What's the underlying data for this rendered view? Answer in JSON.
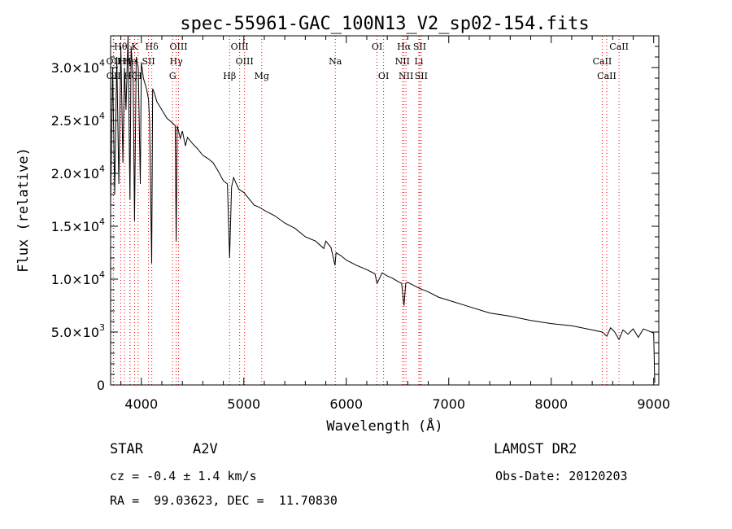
{
  "chart_data": {
    "type": "line",
    "title": "spec-55961-GAC_100N13_V2_sp02-154.fits",
    "xlabel": "Wavelength (Å)",
    "ylabel": "Flux (relative)",
    "xlim": [
      3700,
      9050
    ],
    "ylim": [
      0,
      33000
    ],
    "x_ticks": [
      4000,
      5000,
      6000,
      7000,
      8000,
      9000
    ],
    "y_ticks": [
      {
        "value": 0,
        "mantissa": "0",
        "exp": ""
      },
      {
        "value": 5000,
        "mantissa": "5.0×10",
        "exp": "3"
      },
      {
        "value": 10000,
        "mantissa": "1.0×10",
        "exp": "4"
      },
      {
        "value": 15000,
        "mantissa": "1.5×10",
        "exp": "4"
      },
      {
        "value": 20000,
        "mantissa": "2.0×10",
        "exp": "4"
      },
      {
        "value": 25000,
        "mantissa": "2.5×10",
        "exp": "4"
      },
      {
        "value": 30000,
        "mantissa": "3.0×10",
        "exp": "4"
      }
    ],
    "series": [
      {
        "x": [
          3700,
          3720,
          3740,
          3760,
          3780,
          3800,
          3820,
          3835,
          3850,
          3870,
          3889,
          3900,
          3920,
          3933,
          3950,
          3970,
          3990,
          4000,
          4020,
          4050,
          4070,
          4080,
          4101,
          4110,
          4130,
          4150,
          4200,
          4250,
          4300,
          4330,
          4340,
          4350,
          4380,
          4400,
          4430,
          4450,
          4500,
          4550,
          4600,
          4650,
          4700,
          4750,
          4800,
          4840,
          4861,
          4880,
          4900,
          4950,
          5000,
          5050,
          5100,
          5150,
          5200,
          5300,
          5400,
          5500,
          5600,
          5700,
          5780,
          5800,
          5850,
          5890,
          5900,
          5950,
          6000,
          6100,
          6200,
          6280,
          6300,
          6350,
          6400,
          6450,
          6500,
          6540,
          6563,
          6580,
          6600,
          6700,
          6800,
          6900,
          7000,
          7200,
          7400,
          7600,
          7800,
          8000,
          8200,
          8400,
          8498,
          8542,
          8580,
          8620,
          8662,
          8700,
          8750,
          8800,
          8850,
          8900,
          8950,
          9000,
          9010
        ],
        "y": [
          17000,
          30000,
          18000,
          31000,
          19000,
          32000,
          21000,
          30000,
          26000,
          33000,
          17500,
          32000,
          29000,
          15500,
          31000,
          30000,
          19000,
          30500,
          29000,
          28000,
          27000,
          25000,
          11500,
          28000,
          27500,
          26800,
          26000,
          25200,
          24800,
          24500,
          13600,
          24500,
          23300,
          24000,
          22600,
          23400,
          22800,
          22300,
          21700,
          21400,
          21000,
          20200,
          19300,
          19000,
          12000,
          18700,
          19600,
          18500,
          18200,
          17600,
          17000,
          16800,
          16500,
          16000,
          15300,
          14800,
          14000,
          13600,
          12900,
          13600,
          13000,
          11300,
          12500,
          12200,
          11800,
          11300,
          10900,
          10500,
          9600,
          10600,
          10300,
          10100,
          9800,
          9600,
          7500,
          9600,
          9700,
          9200,
          8800,
          8300,
          8000,
          7400,
          6800,
          6500,
          6100,
          5800,
          5600,
          5200,
          5000,
          4600,
          5400,
          5000,
          4300,
          5200,
          4800,
          5300,
          4500,
          5300,
          5100,
          4900,
          200
        ]
      }
    ],
    "lines": [
      {
        "label": "Hθ",
        "wave": 3798,
        "row": 0
      },
      {
        "label": "K",
        "wave": 3934,
        "row": 0
      },
      {
        "label": "Hδ",
        "wave": 4102,
        "row": 0
      },
      {
        "label": "OIII",
        "wave": 4363,
        "row": 0
      },
      {
        "label": "OIII",
        "wave": 4959,
        "row": 0
      },
      {
        "label": "OI",
        "wave": 6300,
        "row": 0
      },
      {
        "label": "Hα",
        "wave": 6563,
        "row": 0
      },
      {
        "label": "SII",
        "wave": 6716,
        "row": 0
      },
      {
        "label": "CaII",
        "wave": 8662,
        "row": 0
      },
      {
        "label": "OII",
        "wave": 3727,
        "row": 1
      },
      {
        "label": "Hη",
        "wave": 3835,
        "row": 1
      },
      {
        "label": "He",
        "wave": 3889,
        "row": 1
      },
      {
        "label": "SII",
        "wave": 4070,
        "row": 1
      },
      {
        "label": "Hγ",
        "wave": 4340,
        "row": 1
      },
      {
        "label": "OIII",
        "wave": 5007,
        "row": 1
      },
      {
        "label": "Na",
        "wave": 5893,
        "row": 1
      },
      {
        "label": "NII",
        "wave": 6548,
        "row": 1
      },
      {
        "label": "Li",
        "wave": 6708,
        "row": 1
      },
      {
        "label": "CaII",
        "wave": 8498,
        "row": 1
      },
      {
        "label": "OII",
        "wave": 3729,
        "row": 2
      },
      {
        "label": "Hζ",
        "wave": 3889,
        "row": 2
      },
      {
        "label": "H",
        "wave": 3968,
        "row": 2
      },
      {
        "label": "G",
        "wave": 4305,
        "row": 2
      },
      {
        "label": "Hβ",
        "wave": 4861,
        "row": 2
      },
      {
        "label": "Mg",
        "wave": 5175,
        "row": 2
      },
      {
        "label": "OI",
        "wave": 6364,
        "row": 2
      },
      {
        "label": "NII",
        "wave": 6583,
        "row": 2
      },
      {
        "label": "SII",
        "wave": 6731,
        "row": 2
      },
      {
        "label": "CaII",
        "wave": 8542,
        "row": 2
      }
    ]
  },
  "info": {
    "object_class": "STAR",
    "subclass": "A2V",
    "survey": "LAMOST DR2",
    "cz": "cz = -0.4 ± 1.4 km/s",
    "obs_date": "Obs-Date: 20120203",
    "coords": "RA =  99.03623, DEC =  11.70830"
  },
  "colors": {
    "axes": "#000000",
    "spectrum": "#000000",
    "line_markers": "#ff0000"
  }
}
